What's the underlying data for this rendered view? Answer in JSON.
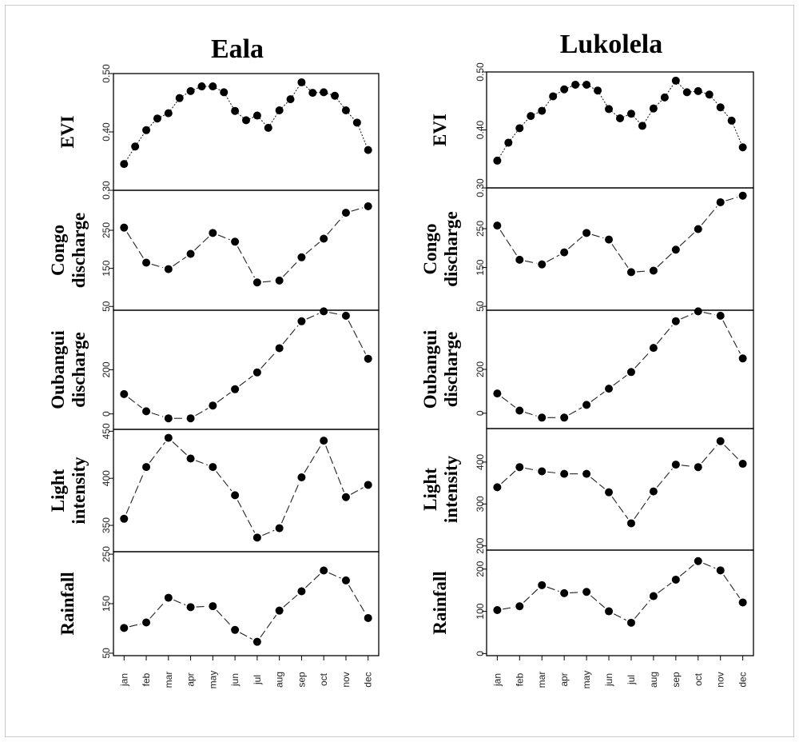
{
  "figure": {
    "months": [
      "jan",
      "feb",
      "mar",
      "apr",
      "may",
      "jun",
      "jul",
      "aug",
      "sep",
      "oct",
      "nov",
      "dec"
    ]
  },
  "chart_data": [
    {
      "title": "Eala",
      "type": "line",
      "x": [
        "jan",
        "feb",
        "mar",
        "apr",
        "may",
        "jun",
        "jul",
        "aug",
        "sep",
        "oct",
        "nov",
        "dec"
      ],
      "panels": [
        {
          "ylabel": [
            "EVI"
          ],
          "ylim": [
            0.3,
            0.5
          ],
          "yticks": [
            0.3,
            0.4,
            0.5
          ],
          "ytick_labels": [
            "0.30",
            "0.40",
            "0.50"
          ],
          "x_pos": [
            1,
            1.5,
            2,
            2.5,
            3,
            3.5,
            4,
            4.5,
            5,
            5.5,
            6,
            6.5,
            7,
            7.5,
            8,
            8.5,
            9,
            9.5,
            10,
            10.5,
            11,
            11.5,
            12
          ],
          "values": [
            0.345,
            0.375,
            0.403,
            0.423,
            0.432,
            0.458,
            0.47,
            0.478,
            0.478,
            0.468,
            0.436,
            0.42,
            0.428,
            0.407,
            0.437,
            0.456,
            0.485,
            0.467,
            0.468,
            0.462,
            0.437,
            0.416,
            0.369
          ]
        },
        {
          "ylabel": [
            "Congo",
            "discharge"
          ],
          "ylim": [
            40,
            355
          ],
          "yticks": [
            50,
            150,
            250
          ],
          "ytick_labels": [
            "50",
            "150",
            "250"
          ],
          "values": [
            257,
            165,
            148,
            188,
            243,
            220,
            113,
            118,
            179,
            228,
            296,
            313
          ]
        },
        {
          "ylabel": [
            "Oubangui",
            "discharge"
          ],
          "ylim": [
            -70,
            470
          ],
          "yticks": [
            0,
            200
          ],
          "ytick_labels": [
            "0",
            "200"
          ],
          "values": [
            90,
            12,
            -20,
            -20,
            38,
            112,
            188,
            298,
            420,
            465,
            445,
            250
          ]
        },
        {
          "ylabel": [
            "Light",
            "intensity"
          ],
          "ylim": [
            322,
            452
          ],
          "yticks": [
            350,
            400,
            450
          ],
          "ytick_labels": [
            "350",
            "400",
            "450"
          ],
          "values": [
            357,
            412,
            443,
            421,
            412,
            382,
            337,
            347,
            401,
            440,
            380,
            393
          ]
        },
        {
          "ylabel": [
            "Rainfall"
          ],
          "ylim": [
            45,
            255
          ],
          "yticks": [
            50,
            150,
            250
          ],
          "ytick_labels": [
            "50",
            "150",
            "250"
          ],
          "values": [
            101,
            112,
            162,
            143,
            145,
            97,
            73,
            136,
            175,
            217,
            197,
            121
          ]
        }
      ]
    },
    {
      "title": "Lukolela",
      "type": "line",
      "x": [
        "jan",
        "feb",
        "mar",
        "apr",
        "may",
        "jun",
        "jul",
        "aug",
        "sep",
        "oct",
        "nov",
        "dec"
      ],
      "panels": [
        {
          "ylabel": [
            "EVI"
          ],
          "ylim": [
            0.3,
            0.5
          ],
          "yticks": [
            0.3,
            0.4,
            0.5
          ],
          "ytick_labels": [
            "0.30",
            "0.40",
            "0.50"
          ],
          "x_pos": [
            1,
            1.5,
            2,
            2.5,
            3,
            3.5,
            4,
            4.5,
            5,
            5.5,
            6,
            6.5,
            7,
            7.5,
            8,
            8.5,
            9,
            9.5,
            10,
            10.5,
            11,
            11.5,
            12
          ],
          "values": [
            0.347,
            0.378,
            0.403,
            0.424,
            0.433,
            0.458,
            0.47,
            0.478,
            0.478,
            0.468,
            0.436,
            0.42,
            0.428,
            0.407,
            0.437,
            0.456,
            0.485,
            0.465,
            0.467,
            0.461,
            0.439,
            0.416,
            0.37
          ]
        },
        {
          "ylabel": [
            "Congo",
            "discharge"
          ],
          "ylim": [
            40,
            355
          ],
          "yticks": [
            50,
            150,
            250
          ],
          "ytick_labels": [
            "50",
            "150",
            "250"
          ],
          "values": [
            258,
            170,
            158,
            189,
            239,
            222,
            138,
            142,
            196,
            249,
            318,
            335
          ]
        },
        {
          "ylabel": [
            "Oubangui",
            "discharge"
          ],
          "ylim": [
            -70,
            470
          ],
          "yticks": [
            0,
            200
          ],
          "ytick_labels": [
            "0",
            "200"
          ],
          "values": [
            90,
            12,
            -20,
            -20,
            38,
            112,
            188,
            298,
            420,
            465,
            445,
            250
          ]
        },
        {
          "ylabel": [
            "Light",
            "intensity"
          ],
          "ylim": [
            190,
            480
          ],
          "yticks": [
            200,
            300,
            400
          ],
          "ytick_labels": [
            "200",
            "300",
            "400"
          ],
          "values": [
            340,
            388,
            378,
            372,
            372,
            328,
            254,
            330,
            394,
            388,
            450,
            396
          ]
        },
        {
          "ylabel": [
            "Rainfall"
          ],
          "ylim": [
            -5,
            245
          ],
          "yticks": [
            0,
            100,
            200
          ],
          "ytick_labels": [
            "0",
            "100",
            "200"
          ],
          "values": [
            103,
            112,
            162,
            143,
            146,
            100,
            73,
            136,
            175,
            219,
            197,
            121
          ]
        }
      ]
    }
  ]
}
